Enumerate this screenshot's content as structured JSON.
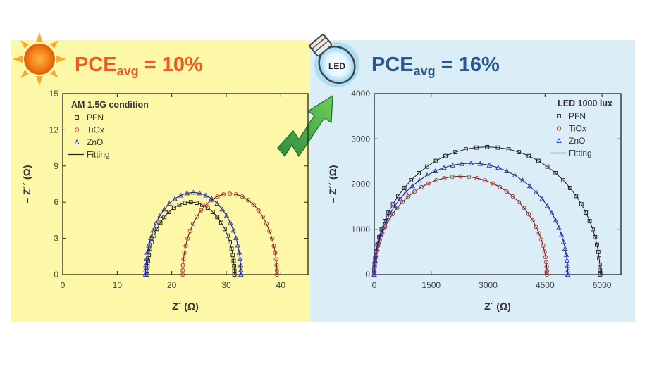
{
  "colors": {
    "left_bg": "#fdf7a8",
    "right_bg": "#dbeef8",
    "left_pce": "#f05a1e",
    "right_pce": "#2a5a8c",
    "PFN": "#222222",
    "TiOx": "#e0312a",
    "ZnO": "#2b35d8",
    "fit": "#222222",
    "arrow": "#3fb54a"
  },
  "icons": [
    "sun-icon",
    "led-bulb-icon",
    "upward-arrow-icon"
  ],
  "left": {
    "pce_prefix": "PCE",
    "pce_sub": "avg",
    "pce_value": " = 10%",
    "legend_title": "AM 1.5G condition",
    "legend": [
      "PFN",
      "TiOx",
      "ZnO",
      "Fitting"
    ]
  },
  "right": {
    "pce_prefix": "PCE",
    "pce_sub": "avg",
    "pce_value": " = 16%",
    "led_label": "LED",
    "legend_title": "LED 1000 lux",
    "legend": [
      "PFN",
      "TiOx",
      "ZnO",
      "Fitting"
    ]
  },
  "chart_data": [
    {
      "type": "scatter",
      "title": "AM 1.5G condition",
      "xlabel": "Z´ (Ω)",
      "ylabel": "– Z´´ (Ω)",
      "xlim": [
        0,
        45
      ],
      "ylim": [
        0,
        15
      ],
      "xticks": [
        0,
        10,
        20,
        30,
        40
      ],
      "yticks": [
        0,
        3,
        6,
        9,
        12,
        15
      ],
      "legend_position": "top-left",
      "series": [
        {
          "name": "PFN",
          "marker": "square",
          "r_start": 15.5,
          "r_end": 31.5,
          "peak": 6.0
        },
        {
          "name": "TiOx",
          "marker": "circle",
          "r_start": 22.0,
          "r_end": 39.3,
          "peak": 6.7
        },
        {
          "name": "ZnO",
          "marker": "triangle",
          "r_start": 15.2,
          "r_end": 32.7,
          "peak": 6.8
        }
      ],
      "fit_label": "Fitting"
    },
    {
      "type": "scatter",
      "title": "LED 1000 lux",
      "xlabel": "Z´ (Ω)",
      "ylabel": "– Z´´ (Ω)",
      "xlim": [
        0,
        6500
      ],
      "ylim": [
        0,
        4000
      ],
      "xticks": [
        0,
        1500,
        3000,
        4500,
        6000
      ],
      "yticks": [
        0,
        1000,
        2000,
        3000,
        4000
      ],
      "legend_position": "top-right",
      "series": [
        {
          "name": "PFN",
          "marker": "square",
          "r_start": 0,
          "r_end": 5950,
          "peak": 2820
        },
        {
          "name": "TiOx",
          "marker": "circle",
          "r_start": 0,
          "r_end": 4550,
          "peak": 2170
        },
        {
          "name": "ZnO",
          "marker": "triangle",
          "r_start": 0,
          "r_end": 5100,
          "peak": 2460
        }
      ],
      "fit_label": "Fitting"
    }
  ]
}
